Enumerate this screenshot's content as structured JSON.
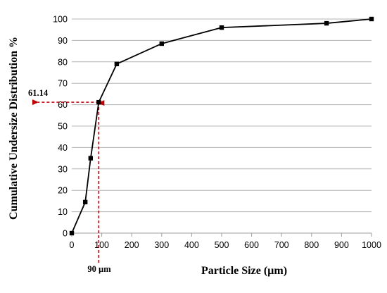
{
  "chart_data": {
    "type": "line",
    "xlabel": "Particle Size (µm)",
    "ylabel": "Cumulative Undersize Distribution %",
    "xlim": [
      0,
      1000
    ],
    "ylim": [
      0,
      100
    ],
    "x_ticks": [
      "0",
      "100",
      "200",
      "300",
      "400",
      "500",
      "600",
      "700",
      "800",
      "900",
      "1000"
    ],
    "y_ticks": [
      "0",
      "10",
      "20",
      "30",
      "40",
      "50",
      "60",
      "70",
      "80",
      "90",
      "100"
    ],
    "grid": "horizontal",
    "legend": "none",
    "series": [
      {
        "x": [
          0,
          45,
          63,
          90,
          150,
          300,
          500,
          850,
          1000
        ],
        "y": [
          0,
          14.5,
          35,
          61.14,
          79,
          88.5,
          96,
          98,
          100
        ]
      }
    ],
    "annotations": [
      {
        "text": "61.14",
        "x": 90,
        "y": 61.14,
        "direction": "to-y-axis"
      },
      {
        "text": "90 µm",
        "x": 90,
        "y": 61.14,
        "direction": "to-x-axis"
      }
    ]
  },
  "colors": {
    "series_line": "#000000",
    "marker": "#000000",
    "grid": "#b4b4b4",
    "axis": "#9e9e9e",
    "annotation": "#c00000"
  }
}
